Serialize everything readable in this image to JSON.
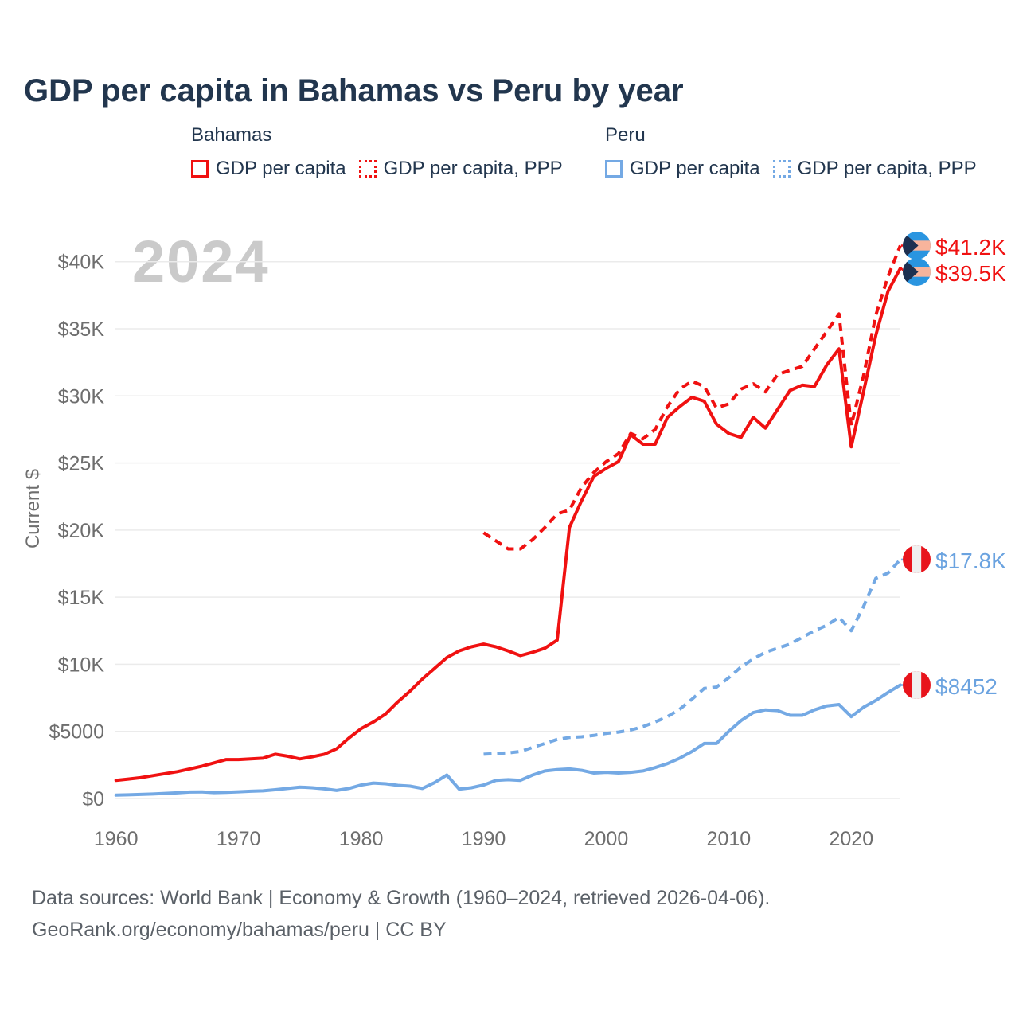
{
  "title": "GDP per capita in Bahamas vs Peru by year",
  "watermark": "2024",
  "legend": {
    "groups": [
      {
        "label": "Bahamas",
        "items": [
          {
            "label": "GDP per capita",
            "style": "solid",
            "color": "#f01111"
          },
          {
            "label": "GDP per capita, PPP",
            "style": "dotted",
            "color": "#f01111"
          }
        ]
      },
      {
        "label": "Peru",
        "items": [
          {
            "label": "GDP per capita",
            "style": "solid",
            "color": "#74a9e4"
          },
          {
            "label": "GDP per capita, PPP",
            "style": "dotted",
            "color": "#74a9e4"
          }
        ]
      }
    ]
  },
  "axis": {
    "y_title": "Current $"
  },
  "footer": {
    "line1": "Data sources: World Bank | Economy & Growth (1960–2024, retrieved 2026-04-06).",
    "line2": "GeoRank.org/economy/bahamas/peru | CC BY"
  },
  "chart_data": {
    "type": "line",
    "title": "GDP per capita in Bahamas vs Peru by year",
    "ylabel": "Current $",
    "xlabel": "",
    "grid": true,
    "legend_position": "top",
    "xlim": [
      1960,
      2024
    ],
    "ylim": [
      0,
      42.5
    ],
    "values_unit": "USD thousands (current $)",
    "x_ticks": [
      "1960",
      "1970",
      "1980",
      "1990",
      "2000",
      "2010",
      "2020"
    ],
    "x_tick_values": [
      1960,
      1970,
      1980,
      1990,
      2000,
      2010,
      2020
    ],
    "y_ticks": [
      {
        "value": 0,
        "label": "$0"
      },
      {
        "value": 5,
        "label": "$5000"
      },
      {
        "value": 10,
        "label": "$10K"
      },
      {
        "value": 15,
        "label": "$15K"
      },
      {
        "value": 20,
        "label": "$20K"
      },
      {
        "value": 25,
        "label": "$25K"
      },
      {
        "value": 30,
        "label": "$30K"
      },
      {
        "value": 35,
        "label": "$35K"
      },
      {
        "value": 40,
        "label": "$40K"
      }
    ],
    "series": [
      {
        "id": "bahamas_gdp",
        "name": "Bahamas GDP per capita",
        "color": "#f01111",
        "dash": "solid",
        "x_start": 1960,
        "values": [
          1.35,
          1.45,
          1.55,
          1.7,
          1.85,
          2.0,
          2.2,
          2.4,
          2.65,
          2.9,
          2.9,
          2.95,
          3.0,
          3.3,
          3.15,
          2.95,
          3.1,
          3.3,
          3.7,
          4.5,
          5.2,
          5.7,
          6.3,
          7.2,
          8.0,
          8.9,
          9.7,
          10.5,
          11.0,
          11.3,
          11.5,
          11.3,
          11.0,
          10.65,
          10.9,
          11.2,
          11.8,
          20.2,
          22.2,
          24.0,
          24.6,
          25.1,
          27.1,
          26.4,
          26.4,
          28.4,
          29.2,
          29.9,
          29.6,
          27.9,
          27.2,
          26.9,
          28.4,
          27.6,
          29.0,
          30.4,
          30.8,
          30.7,
          32.3,
          33.5,
          26.2,
          30.3,
          34.5,
          37.8,
          39.5
        ]
      },
      {
        "id": "bahamas_gdp_ppp",
        "name": "Bahamas GDP per capita, PPP",
        "color": "#f01111",
        "dash": "dashed",
        "x_start": 1990,
        "values": [
          19.8,
          19.2,
          18.6,
          18.6,
          19.3,
          20.2,
          21.2,
          21.5,
          23.2,
          24.3,
          25.1,
          25.7,
          27.2,
          26.8,
          27.5,
          29.2,
          30.5,
          31.1,
          30.7,
          29.1,
          29.4,
          30.5,
          30.9,
          30.3,
          31.6,
          31.9,
          32.2,
          33.5,
          34.8,
          36.1,
          27.8,
          31.5,
          36.0,
          38.9,
          41.2
        ]
      },
      {
        "id": "peru_gdp",
        "name": "Peru GDP per capita",
        "color": "#74a9e4",
        "dash": "solid",
        "x_start": 1960,
        "values": [
          0.25,
          0.27,
          0.3,
          0.33,
          0.38,
          0.42,
          0.48,
          0.49,
          0.44,
          0.46,
          0.5,
          0.54,
          0.57,
          0.65,
          0.75,
          0.85,
          0.8,
          0.72,
          0.6,
          0.75,
          1.0,
          1.15,
          1.1,
          0.98,
          0.92,
          0.75,
          1.18,
          1.75,
          0.7,
          0.8,
          1.0,
          1.35,
          1.4,
          1.35,
          1.75,
          2.05,
          2.15,
          2.2,
          2.1,
          1.9,
          1.95,
          1.9,
          1.95,
          2.05,
          2.3,
          2.6,
          3.0,
          3.5,
          4.1,
          4.1,
          5.0,
          5.8,
          6.4,
          6.6,
          6.55,
          6.2,
          6.2,
          6.6,
          6.9,
          7.0,
          6.1,
          6.8,
          7.3,
          7.9,
          8.452
        ]
      },
      {
        "id": "peru_gdp_ppp",
        "name": "Peru GDP per capita, PPP",
        "color": "#74a9e4",
        "dash": "dashed",
        "x_start": 1990,
        "values": [
          3.3,
          3.35,
          3.4,
          3.5,
          3.8,
          4.1,
          4.4,
          4.55,
          4.6,
          4.7,
          4.85,
          4.95,
          5.1,
          5.35,
          5.7,
          6.1,
          6.65,
          7.4,
          8.2,
          8.3,
          9.0,
          9.8,
          10.4,
          10.9,
          11.2,
          11.5,
          12.0,
          12.5,
          12.9,
          13.5,
          12.5,
          14.3,
          16.4,
          16.8,
          17.8
        ]
      }
    ],
    "end_labels": [
      {
        "series": "bahamas_gdp_ppp",
        "text": "$41.2K",
        "color": "#f01111",
        "flag": "bahamas"
      },
      {
        "series": "bahamas_gdp",
        "text": "$39.5K",
        "color": "#f01111",
        "flag": "bahamas"
      },
      {
        "series": "peru_gdp_ppp",
        "text": "$17.8K",
        "color": "#6ba3e0",
        "flag": "peru"
      },
      {
        "series": "peru_gdp",
        "text": "$8452",
        "color": "#6ba3e0",
        "flag": "peru"
      }
    ],
    "flag_colors": {
      "bahamas": {
        "field": "#2a95e0",
        "band": "#f8b49c",
        "triangle": "#1d3050"
      },
      "peru": {
        "field": "#e8141c",
        "band": "#f0f0f0"
      }
    },
    "grid_color": "#ebebeb",
    "tick_color": "#6e6e6e"
  }
}
